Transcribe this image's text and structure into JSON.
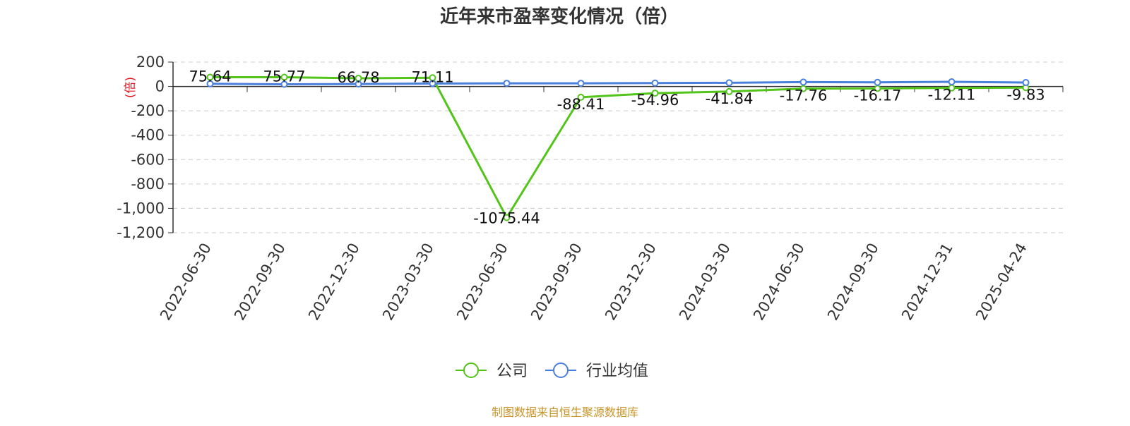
{
  "chart_data": {
    "type": "line",
    "title": "近年来市盈率变化情况（倍）",
    "ylabel": "(倍)",
    "xlabel": "",
    "categories": [
      "2022-06-30",
      "2022-09-30",
      "2022-12-30",
      "2023-03-30",
      "2023-06-30",
      "2023-09-30",
      "2023-12-30",
      "2024-03-30",
      "2024-06-30",
      "2024-09-30",
      "2024-12-31",
      "2025-04-24"
    ],
    "ylim": [
      -1200,
      200
    ],
    "yticks": [
      200,
      0,
      -200,
      -400,
      -600,
      -800,
      -1000,
      -1200
    ],
    "ytick_labels": [
      "200",
      "0",
      "-200",
      "-400",
      "-600",
      "-800",
      "-1,000",
      "-1,200"
    ],
    "grid": true,
    "legend_position": "bottom-center",
    "series": [
      {
        "name": "公司",
        "color": "#52c41a",
        "values": [
          75.64,
          75.77,
          66.78,
          71.11,
          -1075.44,
          -88.41,
          -54.96,
          -41.84,
          -17.76,
          -16.17,
          -12.11,
          -9.83
        ],
        "labels": [
          "75.64",
          "75.77",
          "66.78",
          "71.11",
          "-1075.44",
          "-88.41",
          "-54.96",
          "-41.84",
          "-17.76",
          "-16.17",
          "-12.11",
          "-9.83"
        ]
      },
      {
        "name": "行业均值",
        "color": "#4a7fdc",
        "values": [
          22,
          18,
          20,
          24,
          26,
          26,
          28,
          30,
          36,
          34,
          38,
          32
        ],
        "labels": []
      }
    ],
    "source": "制图数据来自恒生聚源数据库"
  }
}
